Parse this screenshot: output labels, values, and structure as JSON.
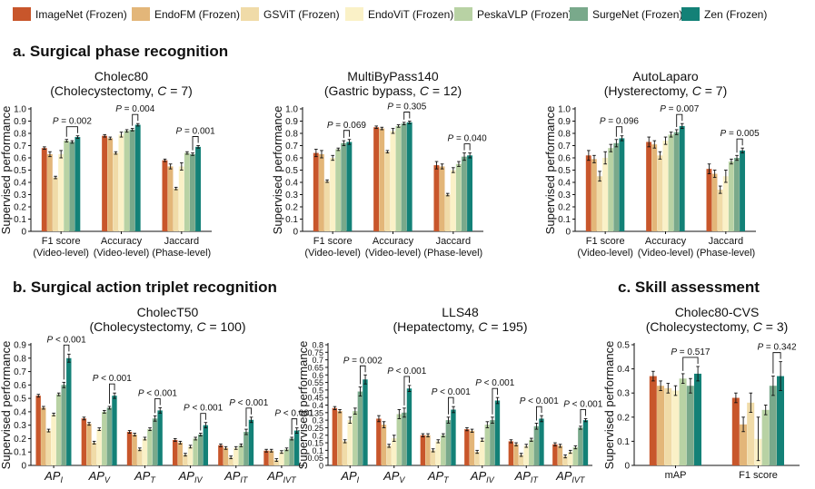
{
  "legend": [
    {
      "label": "ImageNet (Frozen)",
      "color": "#c8562b"
    },
    {
      "label": "EndoFM (Frozen)",
      "color": "#e3b679"
    },
    {
      "label": "GSViT (Frozen)",
      "color": "#f0dba8"
    },
    {
      "label": "EndoViT (Frozen)",
      "color": "#faf1c7"
    },
    {
      "label": "PeskaVLP (Frozen)",
      "color": "#b8d2a4"
    },
    {
      "label": "SurgeNet (Frozen)",
      "color": "#79a98b"
    },
    {
      "label": "Zen (Frozen)",
      "color": "#138177"
    }
  ],
  "sections": {
    "a": "a.  Surgical phase recognition",
    "b": "b.  Surgical action triplet recognition",
    "c": "c.  Skill assessment"
  },
  "ylabel": "Supervised performance",
  "chart_data": [
    {
      "type": "bar",
      "id": "cholec80",
      "title": "Cholec80",
      "subtitle_pre": "(Cholecystectomy, ",
      "subtitle_c": "C",
      "subtitle_post": " = 7)",
      "ylim": [
        0,
        1.0
      ],
      "yticks": [
        "0",
        "0.1",
        "0.2",
        "0.3",
        "0.4",
        "0.5",
        "0.6",
        "0.7",
        "0.8",
        "0.9",
        "1.0"
      ],
      "categories": [
        {
          "line1": "F1 score",
          "line2": "(Video-level)"
        },
        {
          "line1": "Accuracy",
          "line2": "(Video-level)"
        },
        {
          "line1": "Jaccard",
          "line2": "(Phase-level)"
        }
      ],
      "values": [
        [
          0.68,
          0.63,
          0.44,
          0.63,
          0.74,
          0.73,
          0.77
        ],
        [
          0.78,
          0.76,
          0.64,
          0.79,
          0.82,
          0.83,
          0.87
        ],
        [
          0.58,
          0.53,
          0.35,
          0.53,
          0.64,
          0.63,
          0.69
        ]
      ],
      "errors": [
        [
          0.01,
          0.02,
          0.01,
          0.03,
          0.01,
          0.01,
          0.01
        ],
        [
          0.01,
          0.01,
          0.01,
          0.02,
          0.01,
          0.01,
          0.01
        ],
        [
          0.01,
          0.02,
          0.01,
          0.03,
          0.01,
          0.01,
          0.01
        ]
      ],
      "pvalues": [
        {
          "cat": 0,
          "from": 4,
          "to": 6,
          "label": "P = 0.002"
        },
        {
          "cat": 1,
          "from": 5,
          "to": 6,
          "label": "P = 0.004"
        },
        {
          "cat": 2,
          "from": 5,
          "to": 6,
          "label": "P = 0.001"
        }
      ]
    },
    {
      "type": "bar",
      "id": "multibypass",
      "title": "MultiByPass140",
      "subtitle_pre": "(Gastric bypass, ",
      "subtitle_c": "C",
      "subtitle_post": " = 12)",
      "ylim": [
        0,
        1.0
      ],
      "yticks": [
        "0",
        "0.1",
        "0.2",
        "0.3",
        "0.4",
        "0.5",
        "0.6",
        "0.7",
        "0.8",
        "0.9",
        "1.0"
      ],
      "categories": [
        {
          "line1": "F1 score",
          "line2": "(Video-level)"
        },
        {
          "line1": "Accuracy",
          "line2": "(Video-level)"
        },
        {
          "line1": "Jaccard",
          "line2": "(Phase-level)"
        }
      ],
      "values": [
        [
          0.64,
          0.63,
          0.41,
          0.6,
          0.67,
          0.72,
          0.73
        ],
        [
          0.85,
          0.84,
          0.65,
          0.82,
          0.86,
          0.88,
          0.89
        ],
        [
          0.54,
          0.53,
          0.3,
          0.5,
          0.55,
          0.61,
          0.62
        ]
      ],
      "errors": [
        [
          0.03,
          0.03,
          0.01,
          0.02,
          0.01,
          0.02,
          0.02
        ],
        [
          0.01,
          0.01,
          0.01,
          0.02,
          0.01,
          0.01,
          0.01
        ],
        [
          0.03,
          0.02,
          0.01,
          0.02,
          0.02,
          0.03,
          0.02
        ]
      ],
      "pvalues": [
        {
          "cat": 0,
          "from": 5,
          "to": 6,
          "label": "P = 0.069"
        },
        {
          "cat": 1,
          "from": 5,
          "to": 6,
          "label": "P = 0.305"
        },
        {
          "cat": 2,
          "from": 5,
          "to": 6,
          "label": "P = 0.040"
        }
      ]
    },
    {
      "type": "bar",
      "id": "autolaparo",
      "title": "AutoLaparo",
      "subtitle_pre": "(Hysterectomy, ",
      "subtitle_c": "C",
      "subtitle_post": " = 7)",
      "ylim": [
        0,
        1.0
      ],
      "yticks": [
        "0",
        "0.1",
        "0.2",
        "0.3",
        "0.4",
        "0.5",
        "0.6",
        "0.7",
        "0.8",
        "0.9",
        "1.0"
      ],
      "categories": [
        {
          "line1": "F1 score",
          "line2": "(Video-level)"
        },
        {
          "line1": "Accuracy",
          "line2": "(Video-level)"
        },
        {
          "line1": "Jaccard",
          "line2": "(Phase-level)"
        }
      ],
      "values": [
        [
          0.62,
          0.59,
          0.45,
          0.6,
          0.68,
          0.72,
          0.76
        ],
        [
          0.73,
          0.71,
          0.62,
          0.74,
          0.79,
          0.81,
          0.86
        ],
        [
          0.51,
          0.47,
          0.34,
          0.45,
          0.57,
          0.6,
          0.66
        ]
      ],
      "errors": [
        [
          0.04,
          0.03,
          0.04,
          0.05,
          0.03,
          0.03,
          0.02
        ],
        [
          0.04,
          0.03,
          0.03,
          0.03,
          0.02,
          0.02,
          0.02
        ],
        [
          0.04,
          0.03,
          0.03,
          0.05,
          0.02,
          0.02,
          0.02
        ]
      ],
      "pvalues": [
        {
          "cat": 0,
          "from": 5,
          "to": 6,
          "label": "P = 0.096"
        },
        {
          "cat": 1,
          "from": 5,
          "to": 6,
          "label": "P = 0.007"
        },
        {
          "cat": 2,
          "from": 5,
          "to": 6,
          "label": "P = 0.005"
        }
      ]
    },
    {
      "type": "bar",
      "id": "cholect50",
      "title": "CholecT50",
      "subtitle_pre": "(Cholecystectomy, ",
      "subtitle_c": "C",
      "subtitle_post": " = 100)",
      "ylim": [
        0,
        0.9
      ],
      "yticks": [
        "0",
        "0.1",
        "0.2",
        "0.3",
        "0.4",
        "0.5",
        "0.6",
        "0.7",
        "0.8",
        "0.9"
      ],
      "categories": [
        {
          "main": "AP",
          "sub": "I"
        },
        {
          "main": "AP",
          "sub": "V"
        },
        {
          "main": "AP",
          "sub": "T"
        },
        {
          "main": "AP",
          "sub": "IV"
        },
        {
          "main": "AP",
          "sub": "IT"
        },
        {
          "main": "AP",
          "sub": "IVT"
        }
      ],
      "values": [
        [
          0.52,
          0.43,
          0.26,
          0.38,
          0.53,
          0.6,
          0.8
        ],
        [
          0.35,
          0.31,
          0.17,
          0.27,
          0.4,
          0.43,
          0.52
        ],
        [
          0.25,
          0.23,
          0.12,
          0.2,
          0.27,
          0.35,
          0.41
        ],
        [
          0.19,
          0.17,
          0.08,
          0.14,
          0.2,
          0.23,
          0.3
        ],
        [
          0.15,
          0.13,
          0.06,
          0.13,
          0.15,
          0.25,
          0.34
        ],
        [
          0.11,
          0.11,
          0.04,
          0.1,
          0.12,
          0.2,
          0.26
        ]
      ],
      "errors": [
        [
          0.01,
          0.01,
          0.01,
          0.01,
          0.01,
          0.02,
          0.03
        ],
        [
          0.01,
          0.01,
          0.01,
          0.01,
          0.01,
          0.01,
          0.02
        ],
        [
          0.01,
          0.01,
          0.01,
          0.01,
          0.01,
          0.02,
          0.02
        ],
        [
          0.01,
          0.01,
          0.01,
          0.01,
          0.01,
          0.01,
          0.02
        ],
        [
          0.01,
          0.01,
          0.01,
          0.01,
          0.01,
          0.02,
          0.02
        ],
        [
          0.01,
          0.01,
          0.01,
          0.01,
          0.01,
          0.01,
          0.02
        ]
      ],
      "pvalues": [
        {
          "cat": 0,
          "from": 5,
          "to": 6,
          "label": "P < 0.001"
        },
        {
          "cat": 1,
          "from": 5,
          "to": 6,
          "label": "P < 0.001"
        },
        {
          "cat": 2,
          "from": 5,
          "to": 6,
          "label": "P < 0.001"
        },
        {
          "cat": 3,
          "from": 5,
          "to": 6,
          "label": "P < 0.001"
        },
        {
          "cat": 4,
          "from": 5,
          "to": 6,
          "label": "P < 0.001"
        },
        {
          "cat": 5,
          "from": 5,
          "to": 6,
          "label": "P < 0.001"
        }
      ]
    },
    {
      "type": "bar",
      "id": "lls48",
      "title": "LLS48",
      "subtitle_pre": "(Hepatectomy, ",
      "subtitle_c": "C",
      "subtitle_post": " = 195)",
      "ylim": [
        0,
        0.8
      ],
      "yticks": [
        "0",
        "0.05",
        "0.1",
        "0.15",
        "0.2",
        "0.25",
        "0.3",
        "0.35",
        "0.4",
        "0.45",
        "0.5",
        "0.55",
        "0.6",
        "0.65",
        "0.7",
        "0.75",
        "0.8"
      ],
      "categories": [
        {
          "main": "AP",
          "sub": "I"
        },
        {
          "main": "AP",
          "sub": "V"
        },
        {
          "main": "AP",
          "sub": "T"
        },
        {
          "main": "AP",
          "sub": "IV"
        },
        {
          "main": "AP",
          "sub": "IT"
        },
        {
          "main": "AP",
          "sub": "IVT"
        }
      ],
      "values": [
        [
          0.38,
          0.36,
          0.16,
          0.3,
          0.36,
          0.49,
          0.57
        ],
        [
          0.31,
          0.27,
          0.13,
          0.18,
          0.34,
          0.35,
          0.51
        ],
        [
          0.2,
          0.2,
          0.1,
          0.16,
          0.2,
          0.3,
          0.37
        ],
        [
          0.24,
          0.23,
          0.09,
          0.17,
          0.27,
          0.3,
          0.43
        ],
        [
          0.16,
          0.14,
          0.07,
          0.13,
          0.17,
          0.26,
          0.31
        ],
        [
          0.14,
          0.13,
          0.06,
          0.09,
          0.12,
          0.25,
          0.3
        ]
      ],
      "errors": [
        [
          0.01,
          0.01,
          0.01,
          0.02,
          0.02,
          0.03,
          0.03
        ],
        [
          0.02,
          0.02,
          0.01,
          0.02,
          0.03,
          0.03,
          0.02
        ],
        [
          0.01,
          0.01,
          0.01,
          0.01,
          0.01,
          0.02,
          0.02
        ],
        [
          0.01,
          0.01,
          0.01,
          0.01,
          0.02,
          0.02,
          0.02
        ],
        [
          0.01,
          0.01,
          0.01,
          0.01,
          0.01,
          0.02,
          0.02
        ],
        [
          0.01,
          0.01,
          0.01,
          0.01,
          0.01,
          0.01,
          0.01
        ]
      ],
      "pvalues": [
        {
          "cat": 0,
          "from": 5,
          "to": 6,
          "label": "P = 0.002"
        },
        {
          "cat": 1,
          "from": 5,
          "to": 6,
          "label": "P < 0.001"
        },
        {
          "cat": 2,
          "from": 5,
          "to": 6,
          "label": "P < 0.001"
        },
        {
          "cat": 3,
          "from": 5,
          "to": 6,
          "label": "P < 0.001"
        },
        {
          "cat": 4,
          "from": 5,
          "to": 6,
          "label": "P < 0.001"
        },
        {
          "cat": 5,
          "from": 5,
          "to": 6,
          "label": "P < 0.001"
        }
      ]
    },
    {
      "type": "bar",
      "id": "cholec80cvs",
      "title": "Cholec80-CVS",
      "subtitle_pre": "(Cholecystectomy, ",
      "subtitle_c": "C",
      "subtitle_post": " = 3)",
      "ylim": [
        0,
        0.5
      ],
      "yticks": [
        "0",
        "0.1",
        "0.2",
        "0.3",
        "0.4",
        "0.5"
      ],
      "categories": [
        {
          "line1": "mAP"
        },
        {
          "line1": "F1 score"
        }
      ],
      "values": [
        [
          0.37,
          0.33,
          0.32,
          0.31,
          0.36,
          0.33,
          0.38
        ],
        [
          0.28,
          0.17,
          0.26,
          0.11,
          0.23,
          0.33,
          0.37
        ]
      ],
      "errors": [
        [
          0.02,
          0.02,
          0.02,
          0.02,
          0.02,
          0.03,
          0.03
        ],
        [
          0.02,
          0.03,
          0.04,
          0.09,
          0.02,
          0.04,
          0.06
        ]
      ],
      "pvalues": [
        {
          "cat": 0,
          "from": 4,
          "to": 6,
          "label": "P = 0.517"
        },
        {
          "cat": 1,
          "from": 5,
          "to": 6,
          "label": "P = 0.342"
        }
      ]
    }
  ]
}
